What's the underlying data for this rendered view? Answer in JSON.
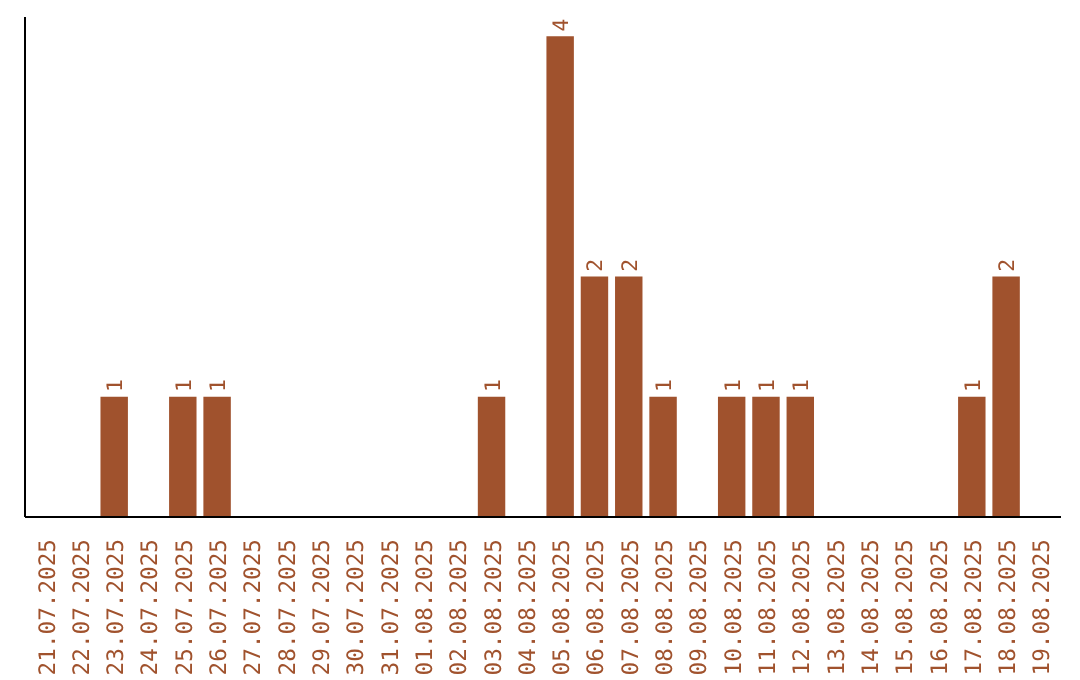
{
  "chart_data": {
    "type": "bar",
    "categories": [
      "21.07.2025",
      "22.07.2025",
      "23.07.2025",
      "24.07.2025",
      "25.07.2025",
      "26.07.2025",
      "27.07.2025",
      "28.07.2025",
      "29.07.2025",
      "30.07.2025",
      "31.07.2025",
      "01.08.2025",
      "02.08.2025",
      "03.08.2025",
      "04.08.2025",
      "05.08.2025",
      "06.08.2025",
      "07.08.2025",
      "08.08.2025",
      "09.08.2025",
      "10.08.2025",
      "11.08.2025",
      "12.08.2025",
      "13.08.2025",
      "14.08.2025",
      "15.08.2025",
      "16.08.2025",
      "17.08.2025",
      "18.08.2025",
      "19.08.2025"
    ],
    "values": [
      0,
      0,
      1,
      0,
      1,
      1,
      0,
      0,
      0,
      0,
      0,
      0,
      0,
      1,
      0,
      4,
      2,
      2,
      1,
      0,
      1,
      1,
      1,
      0,
      0,
      0,
      0,
      1,
      2,
      0
    ],
    "value_labels": [
      null,
      null,
      "1",
      null,
      "1",
      "1",
      null,
      null,
      null,
      null,
      null,
      null,
      null,
      "1",
      null,
      "4",
      "2",
      "2",
      "1",
      null,
      "1",
      "1",
      "1",
      null,
      null,
      null,
      null,
      "1",
      "2",
      null
    ],
    "color": "#a0522d",
    "grid": false,
    "tick_labels": "x"
  }
}
